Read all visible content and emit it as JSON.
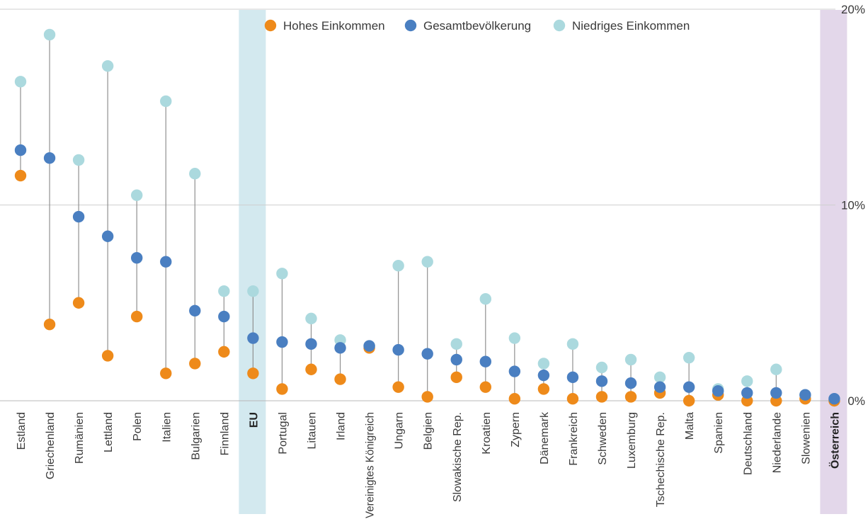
{
  "chart_data": {
    "type": "dot-range",
    "title": "",
    "xlabel": "",
    "ylabel": "",
    "ylim": [
      0,
      20
    ],
    "yticks": [
      {
        "value": 0,
        "label": "0%"
      },
      {
        "value": 10,
        "label": "10%"
      },
      {
        "value": 20,
        "label": "20%"
      }
    ],
    "grid": true,
    "legend_position": "top",
    "highlight": [
      "EU",
      "Österreich"
    ],
    "categories": [
      "Estland",
      "Griechenland",
      "Rumänien",
      "Lettland",
      "Polen",
      "Italien",
      "Bulgarien",
      "Finnland",
      "EU",
      "Portugal",
      "Litauen",
      "Irland",
      "Vereinigtes Königreich",
      "Ungarn",
      "Belgien",
      "Slowakische Rep.",
      "Kroatien",
      "Zypern",
      "Dänemark",
      "Frankreich",
      "Schweden",
      "Luxemburg",
      "Tschechische Rep.",
      "Malta",
      "Spanien",
      "Deutschland",
      "Niederlande",
      "Slowenien",
      "Österreich"
    ],
    "series": [
      {
        "name": "Hohes Einkommen",
        "color": "#ee8a1a",
        "values": [
          11.5,
          3.9,
          5.0,
          2.3,
          4.3,
          1.4,
          1.9,
          2.5,
          1.4,
          0.6,
          1.6,
          1.1,
          2.7,
          0.7,
          0.2,
          1.2,
          0.7,
          0.1,
          0.6,
          0.1,
          0.2,
          0.2,
          0.4,
          0.0,
          0.3,
          0.0,
          0.0,
          0.1,
          0.0
        ]
      },
      {
        "name": "Gesamtbevölkerung",
        "color": "#4a7fc1",
        "values": [
          12.8,
          12.4,
          9.4,
          8.4,
          7.3,
          7.1,
          4.6,
          4.3,
          3.2,
          3.0,
          2.9,
          2.7,
          2.8,
          2.6,
          2.4,
          2.1,
          2.0,
          1.5,
          1.3,
          1.2,
          1.0,
          0.9,
          0.7,
          0.7,
          0.5,
          0.4,
          0.4,
          0.3,
          0.1
        ]
      },
      {
        "name": "Niedriges Einkommen",
        "color": "#abd9de",
        "values": [
          16.3,
          18.7,
          12.3,
          17.1,
          10.5,
          15.3,
          11.6,
          5.6,
          5.6,
          6.5,
          4.2,
          3.1,
          2.8,
          6.9,
          7.1,
          2.9,
          5.2,
          3.2,
          1.9,
          2.9,
          1.7,
          2.1,
          1.2,
          2.2,
          0.6,
          1.0,
          1.6,
          0.3,
          0.0
        ]
      }
    ]
  }
}
